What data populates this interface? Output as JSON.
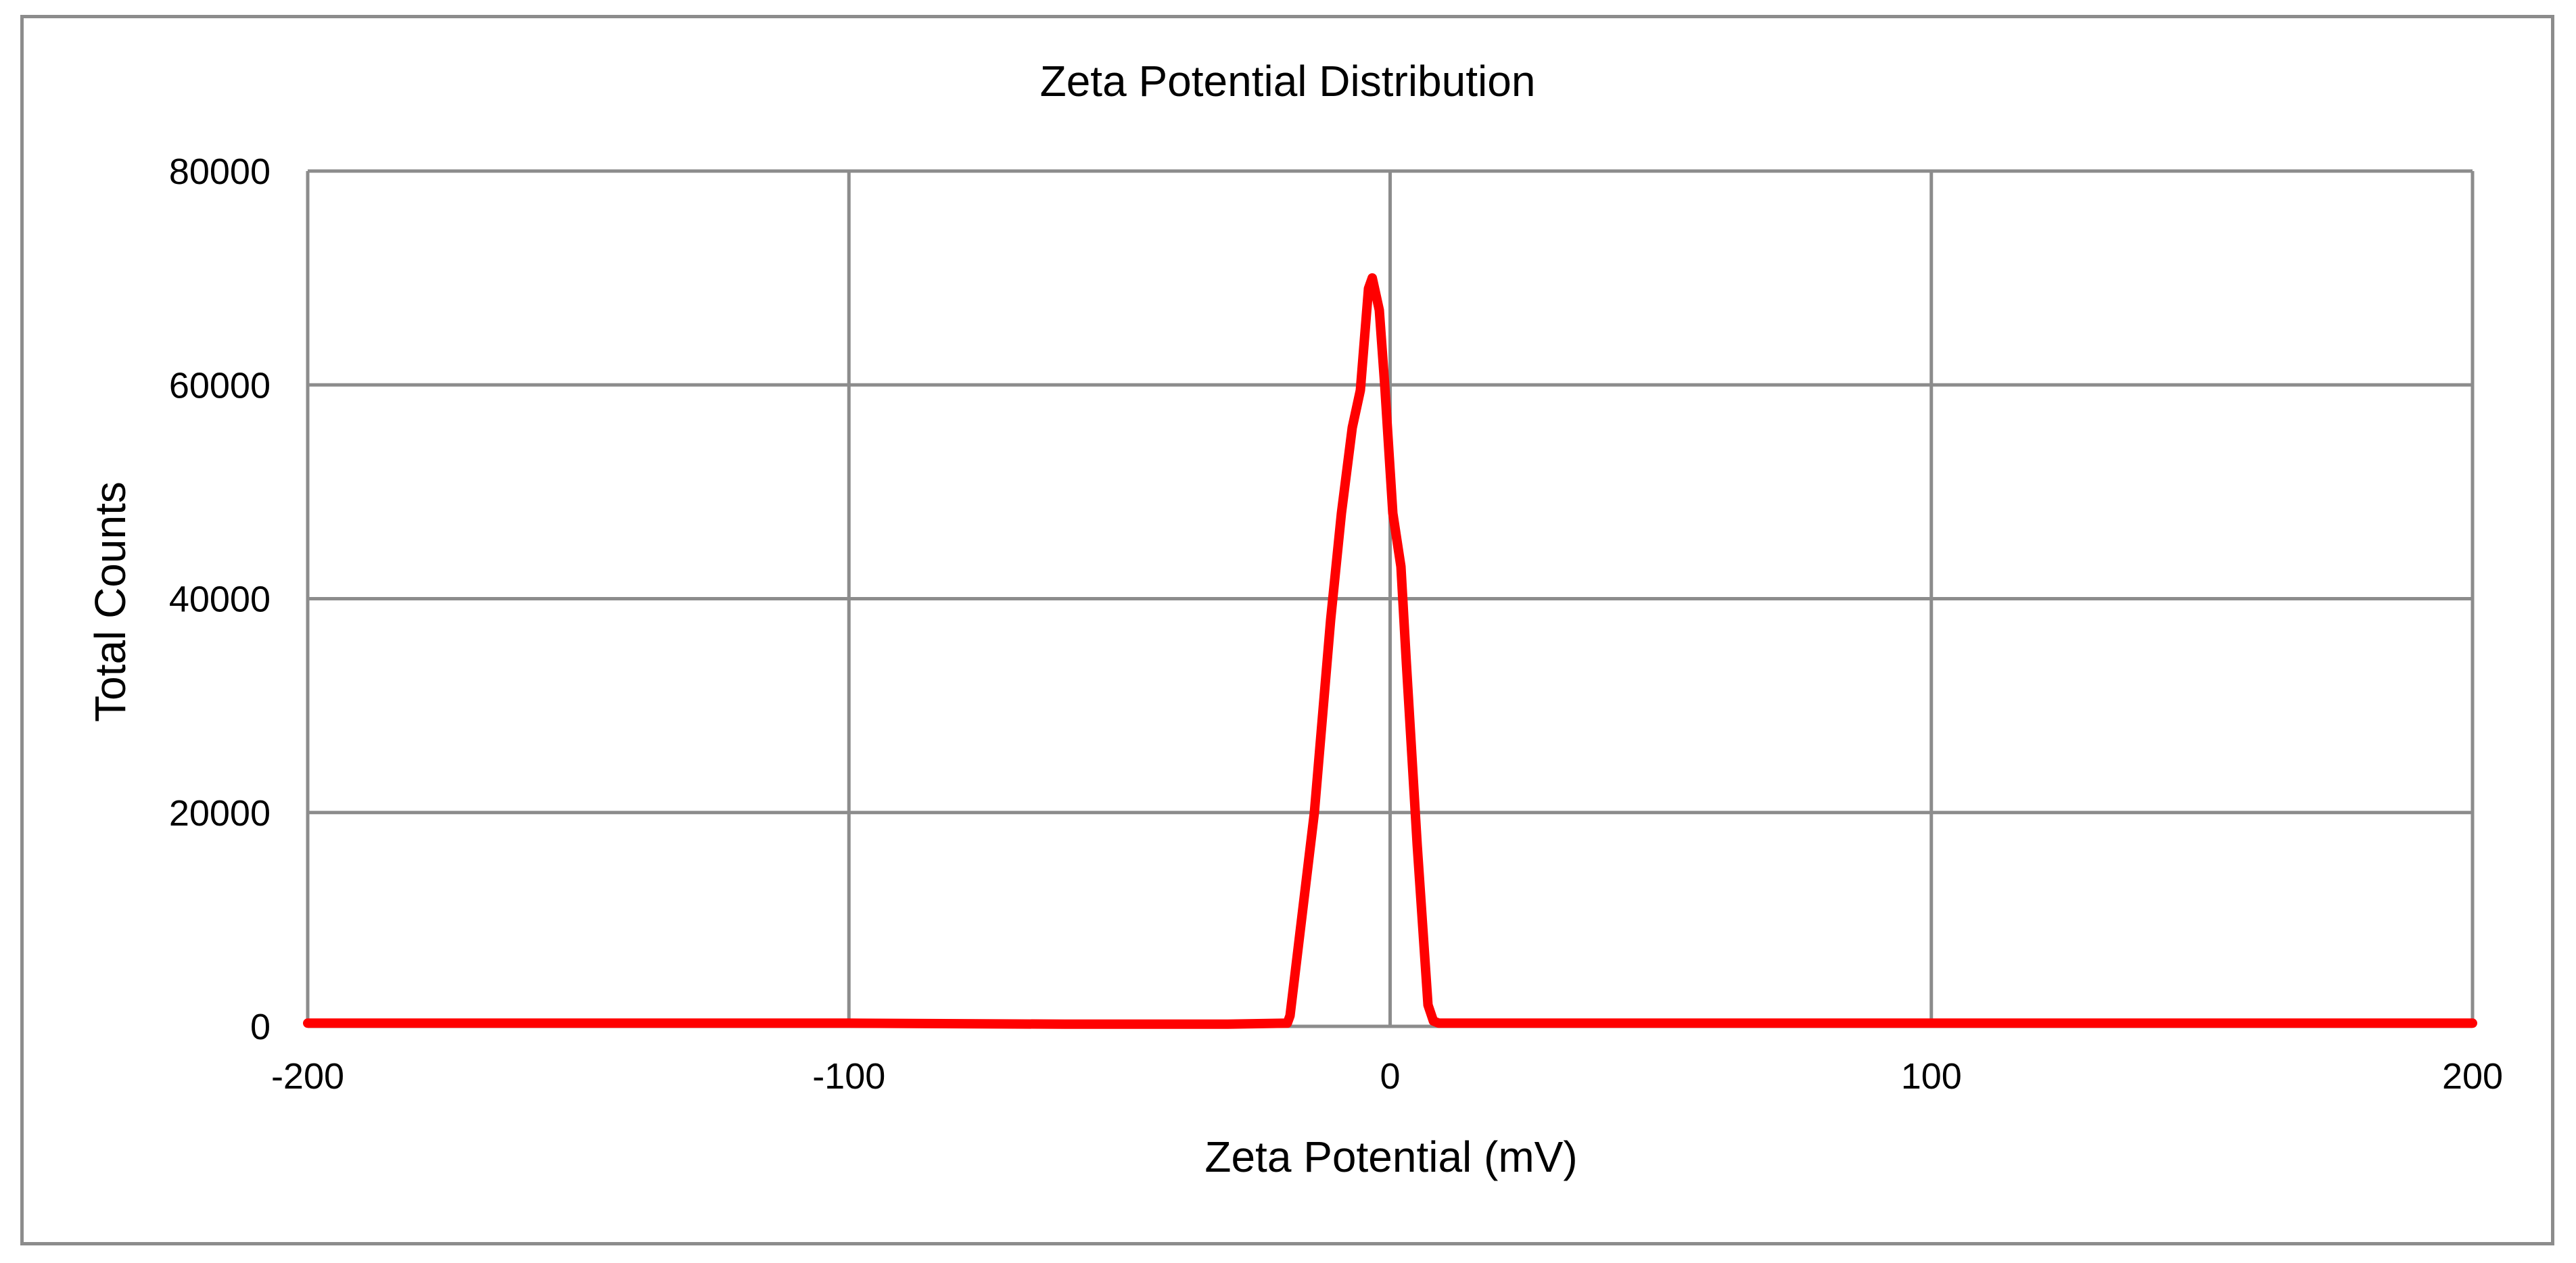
{
  "chart_data": {
    "type": "line",
    "title": "Zeta Potential Distribution",
    "xlabel": "Zeta Potential (mV)",
    "ylabel": "Total Counts",
    "xlim": [
      -200,
      200
    ],
    "ylim": [
      0,
      80000
    ],
    "x_ticks": [
      "-200",
      "-100",
      "0",
      "100",
      "200"
    ],
    "y_ticks": [
      "0",
      "20000",
      "40000",
      "60000",
      "80000"
    ],
    "grid": true,
    "legend": "none",
    "series": [
      {
        "color": "#ff0000",
        "x": [
          -200,
          -150,
          -100,
          -60,
          -30,
          -19,
          -18.5,
          -14,
          -11,
          -9,
          -7,
          -5.5,
          -4,
          -3.3,
          -2,
          -1,
          0,
          0.5,
          2,
          3,
          5,
          7,
          8,
          9,
          20,
          60,
          100,
          150,
          200
        ],
        "y": [
          300,
          300,
          300,
          200,
          200,
          300,
          1000,
          20000,
          38000,
          48000,
          56000,
          59500,
          69000,
          70000,
          67000,
          60000,
          52000,
          48000,
          43000,
          34000,
          17000,
          2000,
          500,
          300,
          300,
          300,
          300,
          300,
          300
        ]
      }
    ]
  }
}
